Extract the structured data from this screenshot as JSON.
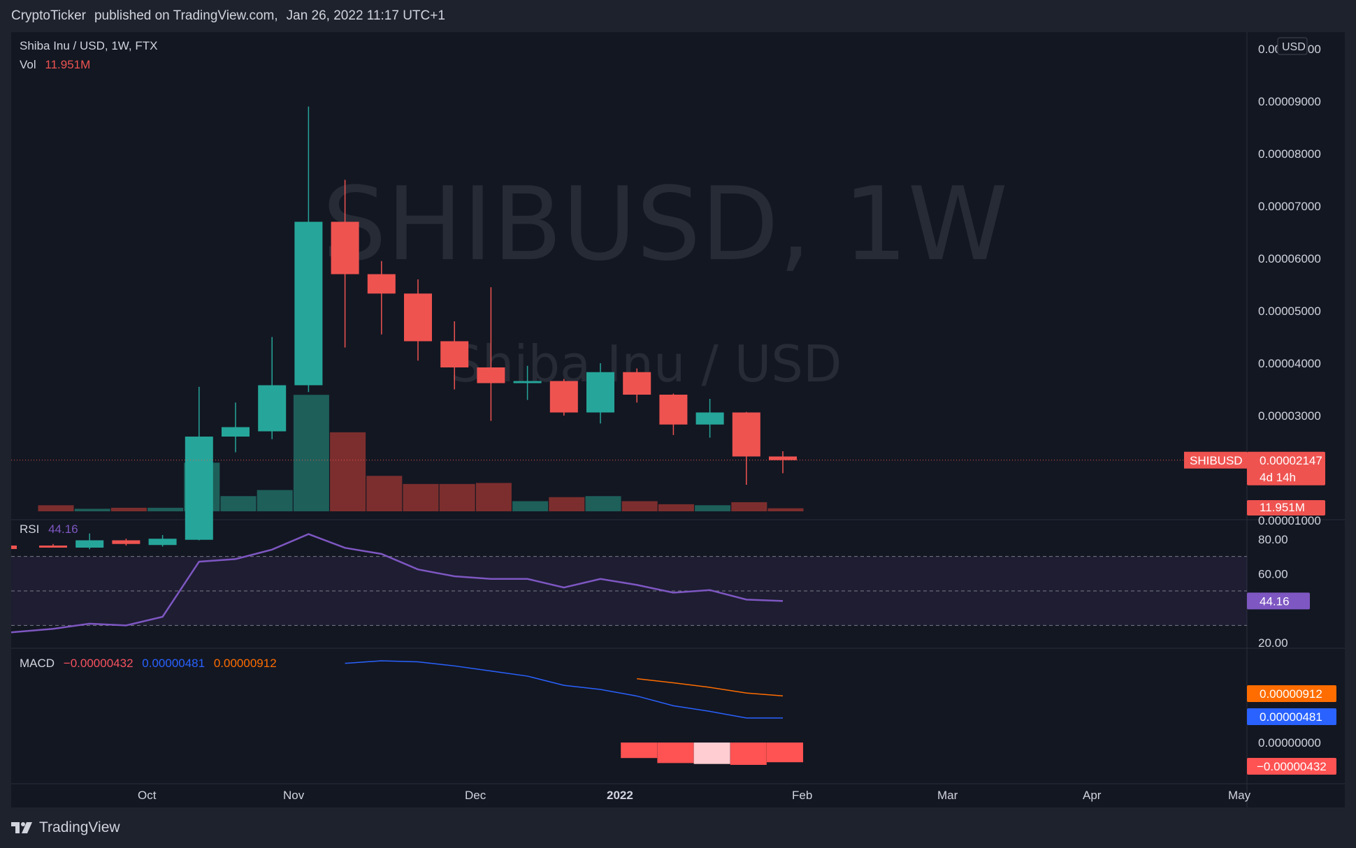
{
  "header": {
    "publisher": "CryptoTicker",
    "published_on": "published on TradingView.com,",
    "date": "Jan 26, 2022 11:17 UTC+1"
  },
  "legend": {
    "symbol_line": "Shiba Inu / USD, 1W, FTX",
    "vol_label": "Vol",
    "vol_value": "11.951M"
  },
  "watermark": {
    "main": "SHIBUSD, 1W",
    "sub": "Shiba Inu / USD"
  },
  "rsi_legend": {
    "label": "RSI",
    "value": "44.16"
  },
  "macd_legend": {
    "label": "MACD",
    "hist": "−0.00000432",
    "macd": "0.00000481",
    "signal": "0.00000912"
  },
  "price_badge": {
    "symbol": "SHIBUSD",
    "price": "0.00002147",
    "countdown": "4d 14h"
  },
  "vol_badge": "11.951M",
  "rsi_badge": "44.16",
  "macd_badges": {
    "signal": "0.00000912",
    "macd": "0.00000481",
    "hist": "−0.00000432"
  },
  "currency": "USD",
  "footer": {
    "brand": "TradingView"
  },
  "colors": {
    "bull": "#26a69a",
    "bear": "#ef5350",
    "bull_vol": "#1e5f5a",
    "bear_vol": "#7c2e2e",
    "rsi": "#7e57c2",
    "macd": "#2962ff",
    "signal": "#ff6d00"
  },
  "chart_data": [
    {
      "type": "candlestick",
      "title": "Shiba Inu / USD, 1W, FTX",
      "ylim": [
        0,
        0.0001
      ],
      "y_ticks": [
        "0.00010000",
        "0.00009000",
        "0.00008000",
        "0.00007000",
        "0.00006000",
        "0.00005000",
        "0.00004000",
        "0.00003000",
        "0.00001000"
      ],
      "x_ticks": [
        "Oct",
        "Nov",
        "Dec",
        "2022",
        "Feb",
        "Mar",
        "Apr",
        "May"
      ],
      "candles": [
        {
          "o": 5.2e-06,
          "h": 5.5e-06,
          "l": 4.8e-06,
          "c": 5e-06
        },
        {
          "o": 4.8e-06,
          "h": 7.5e-06,
          "l": 4.5e-06,
          "c": 6.2e-06
        },
        {
          "o": 6.2e-06,
          "h": 6.5e-06,
          "l": 5.2e-06,
          "c": 5.5e-06
        },
        {
          "o": 5.3e-06,
          "h": 7.2e-06,
          "l": 5e-06,
          "c": 6.5e-06
        },
        {
          "o": 6.3e-06,
          "h": 3.55e-05,
          "l": 6.2e-06,
          "c": 2.6e-05
        },
        {
          "o": 2.6e-05,
          "h": 3.25e-05,
          "l": 2.3e-05,
          "c": 2.78e-05
        },
        {
          "o": 2.7e-05,
          "h": 4.5e-05,
          "l": 2.55e-05,
          "c": 3.58e-05
        },
        {
          "o": 3.58e-05,
          "h": 8.9e-05,
          "l": 3.45e-05,
          "c": 6.7e-05
        },
        {
          "o": 6.7e-05,
          "h": 7.5e-05,
          "l": 4.3e-05,
          "c": 5.7e-05
        },
        {
          "o": 5.7e-05,
          "h": 5.95e-05,
          "l": 4.55e-05,
          "c": 5.33e-05
        },
        {
          "o": 5.33e-05,
          "h": 5.6e-05,
          "l": 4.05e-05,
          "c": 4.42e-05
        },
        {
          "o": 4.42e-05,
          "h": 4.8e-05,
          "l": 3.5e-05,
          "c": 3.92e-05
        },
        {
          "o": 3.92e-05,
          "h": 5.45e-05,
          "l": 2.9e-05,
          "c": 3.62e-05
        },
        {
          "o": 3.62e-05,
          "h": 3.95e-05,
          "l": 3.3e-05,
          "c": 3.66e-05
        },
        {
          "o": 3.66e-05,
          "h": 3.7e-05,
          "l": 3e-05,
          "c": 3.06e-05
        },
        {
          "o": 3.06e-05,
          "h": 4e-05,
          "l": 2.85e-05,
          "c": 3.83e-05
        },
        {
          "o": 3.83e-05,
          "h": 3.9e-05,
          "l": 3.25e-05,
          "c": 3.4e-05
        },
        {
          "o": 3.4e-05,
          "h": 3.42e-05,
          "l": 2.63e-05,
          "c": 2.83e-05
        },
        {
          "o": 2.83e-05,
          "h": 3.32e-05,
          "l": 2.58e-05,
          "c": 3.06e-05
        },
        {
          "o": 3.06e-05,
          "h": 3.07e-05,
          "l": 1.68e-05,
          "c": 2.22e-05
        },
        {
          "o": 2.22e-05,
          "h": 2.32e-05,
          "l": 1.9e-05,
          "c": 2.15e-05
        }
      ],
      "volume": [
        0.6,
        0.25,
        0.35,
        0.35,
        4.8,
        1.5,
        2.1,
        11.5,
        7.8,
        3.5,
        2.7,
        2.7,
        2.8,
        1.0,
        1.4,
        1.5,
        1.0,
        0.7,
        0.6,
        0.9,
        0.3
      ]
    },
    {
      "type": "line",
      "title": "RSI",
      "ylim": [
        0,
        100
      ],
      "y_ticks": [
        "80.00",
        "60.00",
        "20.00"
      ],
      "band": [
        30,
        70
      ],
      "values": [
        28,
        31,
        30,
        35,
        67,
        68.5,
        74,
        83,
        75,
        71.5,
        62.5,
        58.5,
        57,
        57,
        52,
        57,
        53.5,
        49,
        50.5,
        45,
        44.16
      ]
    },
    {
      "type": "line",
      "title": "MACD",
      "macd": [
        null,
        null,
        null,
        null,
        null,
        null,
        null,
        null,
        1.55e-05,
        1.6e-05,
        1.58e-05,
        1.5e-05,
        1.4e-05,
        1.3e-05,
        1.12e-05,
        1.04e-05,
        9.1e-06,
        7.2e-06,
        6.1e-06,
        4.8e-06,
        4.81e-06
      ],
      "signal": [
        null,
        null,
        null,
        null,
        null,
        null,
        null,
        null,
        null,
        null,
        null,
        null,
        null,
        null,
        null,
        null,
        1.25e-05,
        1.17e-05,
        1.08e-05,
        9.7e-06,
        9.12e-06
      ],
      "histogram": [
        null,
        null,
        null,
        null,
        null,
        null,
        null,
        null,
        null,
        null,
        null,
        null,
        null,
        null,
        null,
        null,
        -3.4e-06,
        -4.5e-06,
        -4.7e-06,
        -4.9e-06,
        -4.32e-06
      ],
      "y_ticks": [
        "0.00000000"
      ]
    }
  ]
}
